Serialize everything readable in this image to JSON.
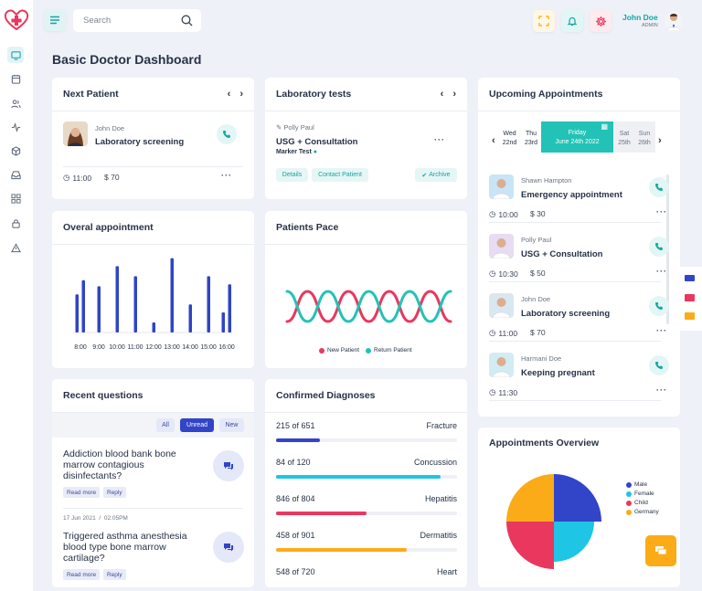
{
  "search": {
    "placeholder": "Search"
  },
  "user": {
    "name": "John Doe",
    "role": "ADMIN"
  },
  "page": {
    "title": "Basic Doctor Dashboard"
  },
  "next_patient": {
    "title": "Next Patient",
    "name": "John Doe",
    "procedure": "Laboratory screening",
    "time": "11:00",
    "price": "$ 70"
  },
  "lab_tests": {
    "title": "Laboratory tests",
    "patient": "Polly Paul",
    "test": "USG + Consultation",
    "subtitle": "Marker Test",
    "details": "Details",
    "contact": "Contact Patient",
    "archive": "Archive"
  },
  "upcoming": {
    "title": "Upcoming Appointments",
    "days": [
      {
        "day": "Wed",
        "date": "22nd"
      },
      {
        "day": "Thu",
        "date": "23rd"
      },
      {
        "day": "Friday",
        "date": "June 24th 2022"
      },
      {
        "day": "Sat",
        "date": "25th"
      },
      {
        "day": "Sun",
        "date": "26th"
      }
    ],
    "items": [
      {
        "name": "Shawn Hampton",
        "procedure": "Emergency appointment",
        "time": "10:00",
        "price": "$ 30"
      },
      {
        "name": "Polly Paul",
        "procedure": "USG + Consultation",
        "time": "10:30",
        "price": "$ 50"
      },
      {
        "name": "John Doe",
        "procedure": "Laboratory screening",
        "time": "11:00",
        "price": "$ 70"
      },
      {
        "name": "Harmani Doe",
        "procedure": "Keeping pregnant",
        "time": "11:30",
        "price": ""
      }
    ]
  },
  "overall": {
    "title": "Overal appointment"
  },
  "pace": {
    "title": "Patients Pace",
    "legend_new": "New Patient",
    "legend_return": "Return Patient"
  },
  "questions": {
    "title": "Recent questions",
    "filters": [
      "All",
      "Unread",
      "New"
    ],
    "items": [
      {
        "text": "Addiction blood bank bone marrow contagious disinfectants?",
        "date": "",
        "time": ""
      },
      {
        "text": "Triggered asthma anesthesia blood type bone marrow cartilage?",
        "date": "17 Jun 2021",
        "time": "02:05PM"
      }
    ],
    "read_more": "Read more",
    "reply": "Reply"
  },
  "diagnoses": {
    "title": "Confirmed Diagnoses",
    "items": [
      {
        "count": "215 of 651",
        "name": "Fracture",
        "pct": 0.24,
        "color": "#3245c8"
      },
      {
        "count": "84 of 120",
        "name": "Concussion",
        "pct": 0.91,
        "color": "#1ec5e5"
      },
      {
        "count": "846 of 804",
        "name": "Hepatitis",
        "pct": 0.5,
        "color": "#e9375e"
      },
      {
        "count": "458 of 901",
        "name": "Dermatitis",
        "pct": 0.72,
        "color": "#fbab18"
      },
      {
        "count": "548 of 720",
        "name": "Heart",
        "pct": 0.0,
        "color": "#3245c8"
      }
    ]
  },
  "overview": {
    "title": "Appointments Overview",
    "legend": [
      {
        "name": "Male",
        "color": "#3245c8"
      },
      {
        "name": "Female",
        "color": "#1ec5e5"
      },
      {
        "name": "Child",
        "color": "#e9375e"
      },
      {
        "name": "Germany",
        "color": "#fbab18"
      }
    ]
  },
  "chart_data": [
    {
      "type": "bar",
      "categories": [
        "8:00",
        "9:00",
        "10:00",
        "11:00",
        "12:00",
        "13:00",
        "14:00",
        "15:00",
        "16:00"
      ],
      "series": [
        {
          "values": [
            38,
            46,
            66,
            56,
            10,
            74,
            28,
            56,
            20
          ]
        },
        {
          "values": [
            52,
            0,
            0,
            0,
            0,
            0,
            0,
            0,
            48
          ]
        }
      ],
      "title": "Overal appointment",
      "ylim": [
        0,
        80
      ],
      "grid": false
    },
    {
      "type": "line",
      "x": [
        0,
        1,
        2,
        3,
        4,
        5,
        6,
        7,
        8
      ],
      "series": [
        {
          "name": "New Patient",
          "values": [
            20,
            80,
            20,
            80,
            20,
            80,
            20,
            80,
            20
          ]
        },
        {
          "name": "Return Patient",
          "values": [
            80,
            20,
            80,
            20,
            80,
            20,
            80,
            20,
            80
          ]
        }
      ],
      "title": "Patients Pace",
      "ylim": [
        0,
        100
      ]
    },
    {
      "type": "pie",
      "title": "Appointments Overview",
      "labels": [
        "Male",
        "Female",
        "Child",
        "Germany"
      ],
      "values": [
        25,
        25,
        25,
        25
      ],
      "legend": "right"
    }
  ]
}
